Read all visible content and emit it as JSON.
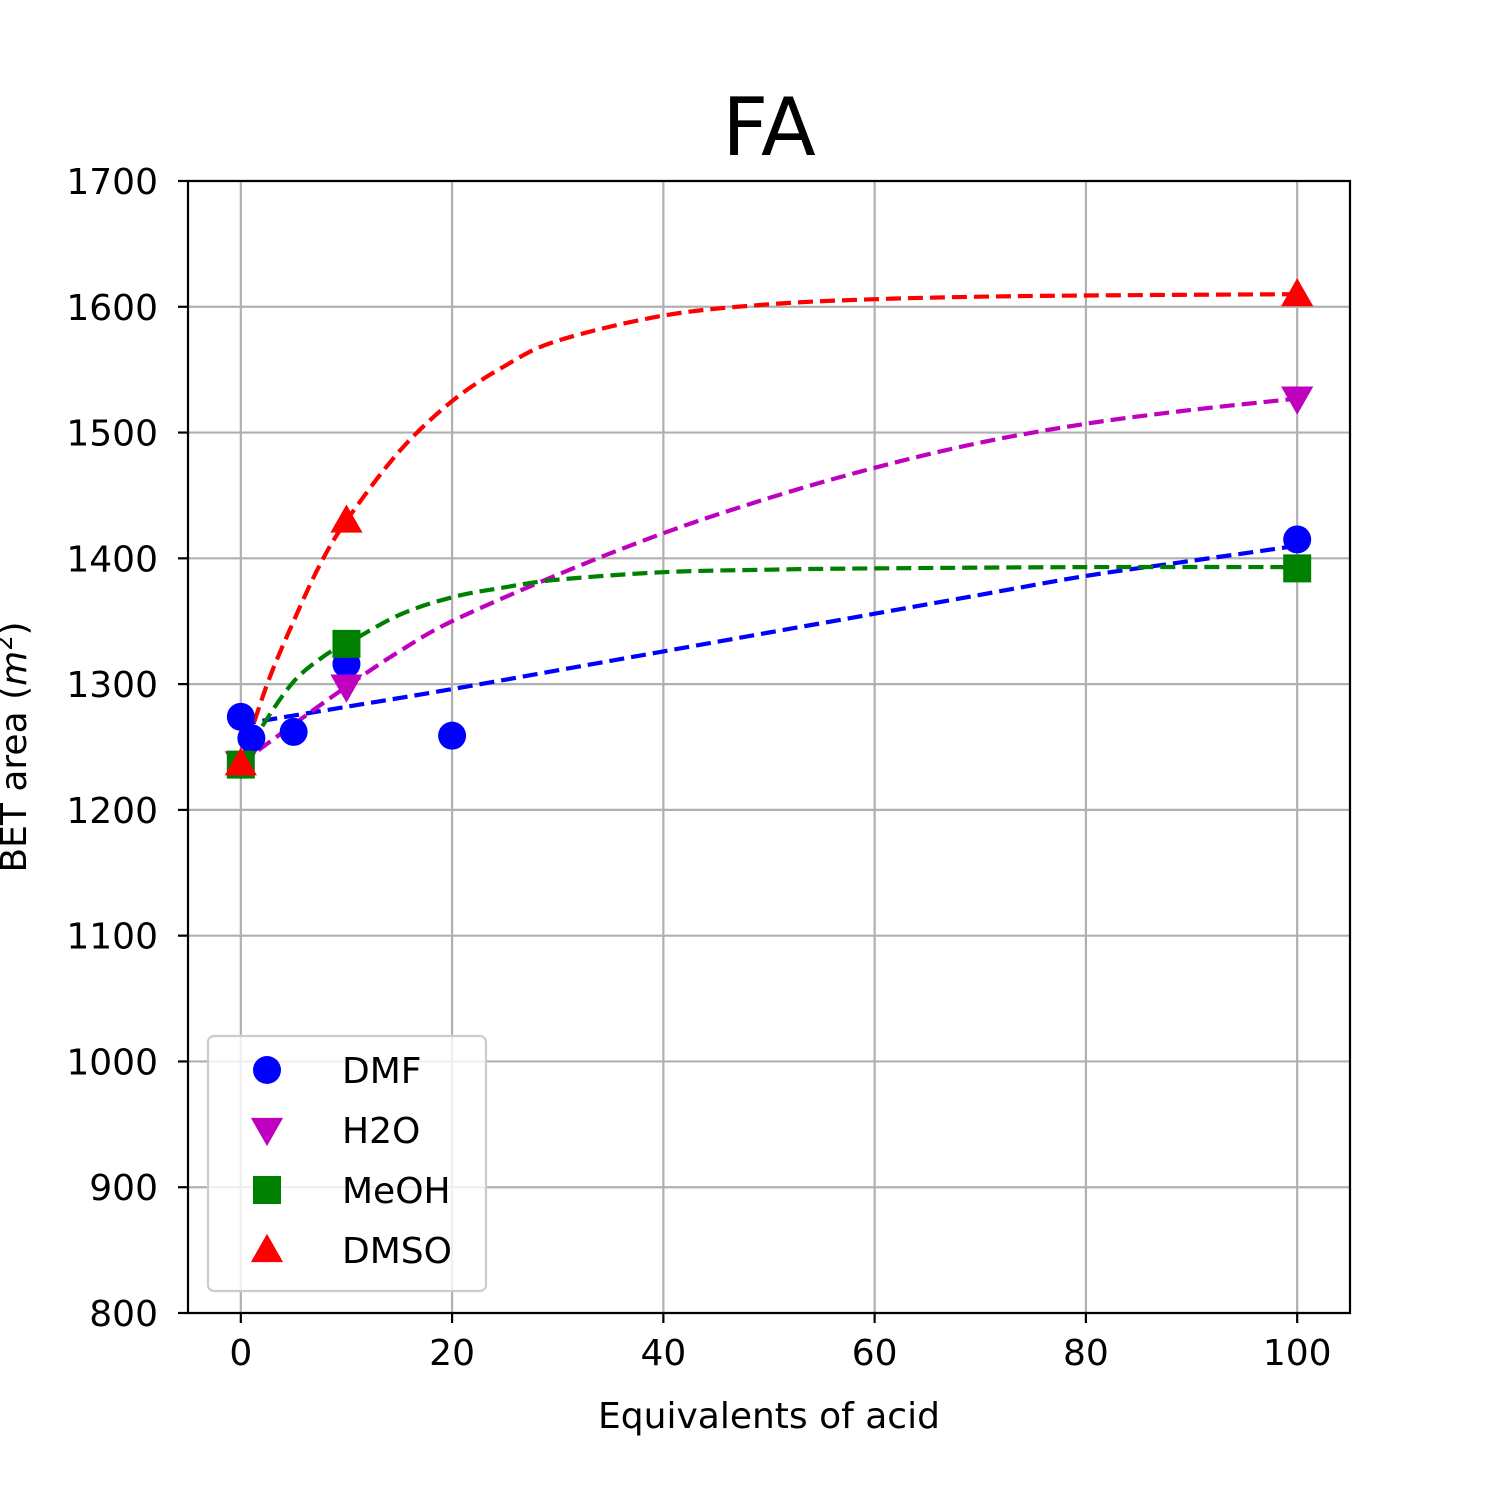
{
  "chart_data": {
    "type": "scatter",
    "title": "FA",
    "xlabel": "Equivalents of acid",
    "ylabel_main": "BET area (",
    "ylabel_unit_base": "m",
    "ylabel_unit_sup": "2",
    "ylabel_close": ")",
    "xlim": [
      -5,
      105
    ],
    "ylim": [
      800,
      1700
    ],
    "xticks": [
      0,
      20,
      40,
      60,
      80,
      100
    ],
    "yticks": [
      800,
      900,
      1000,
      1100,
      1200,
      1300,
      1400,
      1500,
      1600,
      1700
    ],
    "grid": true,
    "legend_position": "lower-left",
    "series": [
      {
        "name": "DMF",
        "marker": "circle",
        "color": "#0000ff",
        "points": [
          [
            0,
            1274
          ],
          [
            1,
            1257
          ],
          [
            5,
            1262
          ],
          [
            10,
            1316
          ],
          [
            20,
            1259
          ],
          [
            100,
            1415
          ]
        ],
        "fit": [
          [
            0,
            1268
          ],
          [
            10,
            1282
          ],
          [
            20,
            1296
          ],
          [
            30,
            1311
          ],
          [
            40,
            1326
          ],
          [
            50,
            1341
          ],
          [
            60,
            1356
          ],
          [
            70,
            1371
          ],
          [
            80,
            1386
          ],
          [
            90,
            1398
          ],
          [
            100,
            1410
          ]
        ]
      },
      {
        "name": "H2O",
        "marker": "triangle-down",
        "color": "#bf00bf",
        "points": [
          [
            0,
            1237
          ],
          [
            10,
            1298
          ],
          [
            100,
            1527
          ]
        ],
        "fit": [
          [
            0,
            1237
          ],
          [
            5,
            1268
          ],
          [
            10,
            1298
          ],
          [
            15,
            1326
          ],
          [
            20,
            1350
          ],
          [
            30,
            1387
          ],
          [
            40,
            1420
          ],
          [
            50,
            1448
          ],
          [
            60,
            1472
          ],
          [
            70,
            1492
          ],
          [
            80,
            1507
          ],
          [
            90,
            1518
          ],
          [
            100,
            1527
          ]
        ]
      },
      {
        "name": "MeOH",
        "marker": "square",
        "color": "#008000",
        "points": [
          [
            0,
            1236
          ],
          [
            10,
            1332
          ],
          [
            100,
            1392
          ]
        ],
        "fit": [
          [
            0,
            1236
          ],
          [
            2,
            1266
          ],
          [
            5,
            1302
          ],
          [
            8,
            1323
          ],
          [
            10,
            1332
          ],
          [
            15,
            1355
          ],
          [
            20,
            1369
          ],
          [
            25,
            1377
          ],
          [
            30,
            1383
          ],
          [
            40,
            1389
          ],
          [
            50,
            1391
          ],
          [
            60,
            1392
          ],
          [
            80,
            1393
          ],
          [
            100,
            1393
          ]
        ]
      },
      {
        "name": "DMSO",
        "marker": "triangle-up",
        "color": "#ff0000",
        "points": [
          [
            0,
            1237
          ],
          [
            10,
            1430
          ],
          [
            100,
            1610
          ]
        ],
        "fit": [
          [
            0,
            1237
          ],
          [
            2.5,
            1300
          ],
          [
            5,
            1350
          ],
          [
            7.5,
            1395
          ],
          [
            10,
            1430
          ],
          [
            15,
            1485
          ],
          [
            20,
            1525
          ],
          [
            25,
            1553
          ],
          [
            30,
            1573
          ],
          [
            40,
            1593
          ],
          [
            50,
            1602
          ],
          [
            60,
            1606
          ],
          [
            70,
            1608
          ],
          [
            80,
            1609
          ],
          [
            100,
            1610
          ]
        ]
      }
    ]
  }
}
